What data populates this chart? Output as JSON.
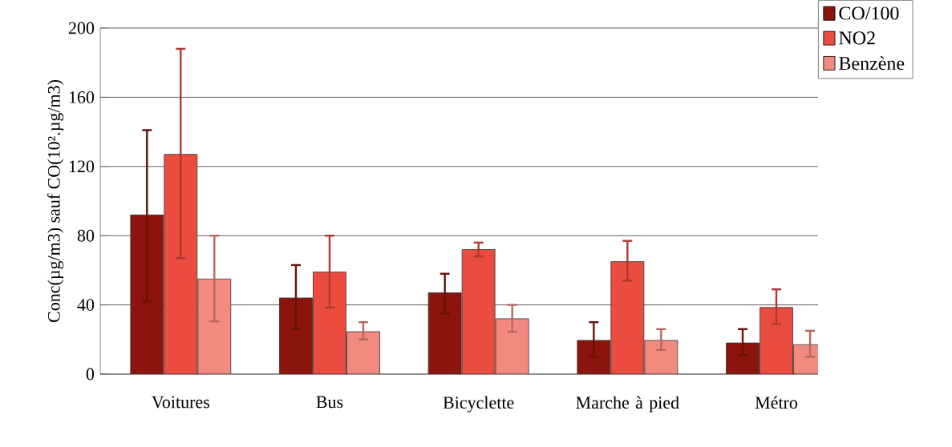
{
  "chart_data": {
    "type": "bar",
    "ylabel": "Conc(µg/m3) sauf CO(10².µg/m3)",
    "categories": [
      "Voitures",
      "Bus",
      "Bicyclette",
      "Marche à pied",
      "Métro"
    ],
    "series": [
      {
        "name": "CO/100",
        "color": "#8b150d",
        "values": [
          92,
          44,
          47,
          19.5,
          18
        ],
        "errors": [
          [
            42,
            141
          ],
          [
            26,
            63
          ],
          [
            35,
            58
          ],
          [
            10,
            30
          ],
          [
            11,
            26
          ]
        ]
      },
      {
        "name": "NO2",
        "color": "#ea4c40",
        "values": [
          127,
          59,
          72,
          65,
          38.5
        ],
        "errors": [
          [
            67,
            188
          ],
          [
            38.5,
            80
          ],
          [
            68,
            76
          ],
          [
            54,
            77
          ],
          [
            29,
            49
          ]
        ]
      },
      {
        "name": "Benzène",
        "color": "#f28a80",
        "values": [
          55,
          24.5,
          32,
          19.5,
          17
        ],
        "errors": [
          [
            30.5,
            80
          ],
          [
            20,
            30
          ],
          [
            24.5,
            40
          ],
          [
            14,
            26
          ],
          [
            10,
            25
          ]
        ]
      }
    ],
    "ylim": [
      0,
      200
    ],
    "yticks": [
      0,
      40,
      80,
      120,
      160,
      200
    ],
    "grid": "y",
    "legend": "top right"
  }
}
